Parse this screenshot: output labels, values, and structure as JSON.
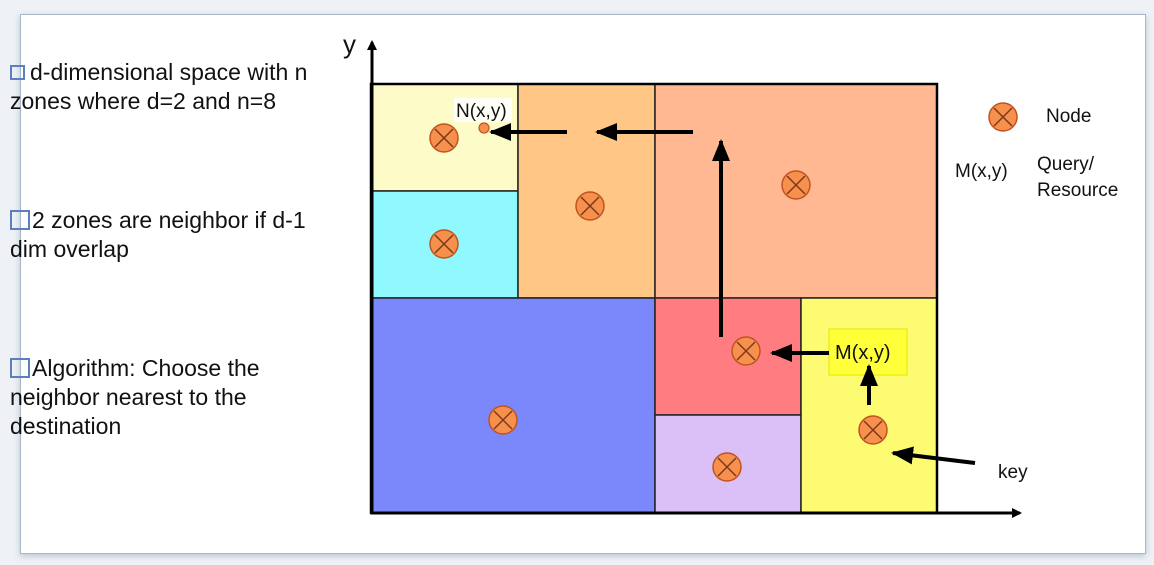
{
  "bullets": [
    {
      "text": "d-dimensional space  with n zones where d=2 and n=8"
    },
    {
      "text": "2 zones are neighbor if     d-1 dim overlap"
    },
    {
      "text": "Algorithm: Choose the neighbor nearest to the destination"
    }
  ],
  "diagram": {
    "y_axis_label": "y",
    "labels": {
      "target_node": "N(x,y)",
      "query_point": "M(x,y)",
      "key": "key"
    },
    "legend": {
      "node": "Node",
      "query_symbol": "M(x,y)",
      "query_line1": "Query/",
      "query_line2": "Resource"
    },
    "colors": {
      "zone_top_left_small": "#fdfcc8",
      "zone_cyan": "#8ff9ff",
      "zone_orange": "#ffc685",
      "zone_salmon": "#ffb892",
      "zone_blue": "#7b88fc",
      "zone_red": "#ff7d80",
      "zone_lavender": "#dbbff7",
      "zone_yellow": "#fcfb72",
      "node_fill": "#f7904d",
      "node_stroke": "#c0541f",
      "query_highlight": "#ffff3a"
    }
  }
}
